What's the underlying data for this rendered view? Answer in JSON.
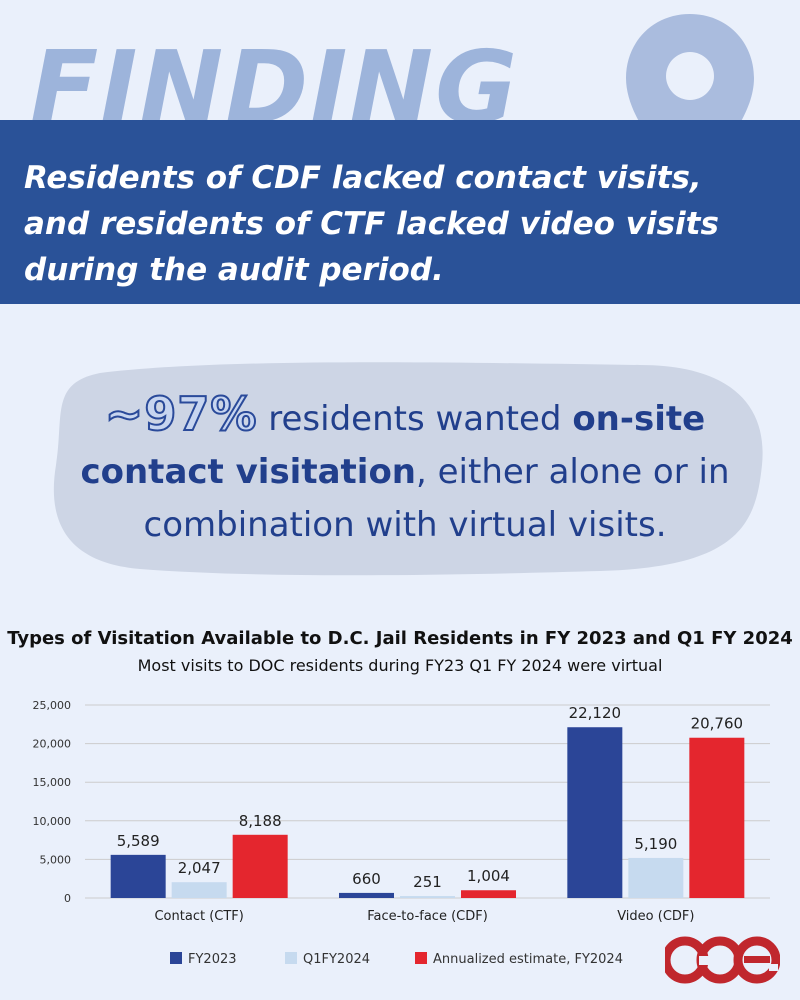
{
  "header": {
    "heading": "FINDING",
    "banner_text": "Residents of CDF lacked contact visits, and residents of CTF lacked video visits during the audit period."
  },
  "callout": {
    "percent": "~97%",
    "text_1": " residents wanted ",
    "emphasis": "on-site contact visitation",
    "text_2": ", either alone or in combination with virtual visits."
  },
  "logo": {
    "text": "cce"
  },
  "colors": {
    "fy2023": "#2b4597",
    "q1fy2024": "#c6daef",
    "annualized": "#e4262e",
    "banner": "#2a5298",
    "background": "#eaf0fb"
  },
  "chart_data": {
    "type": "bar",
    "title": "Types of Visitation Available to D.C. Jail Residents in FY 2023 and Q1 FY 2024",
    "subtitle": "Most visits to DOC residents during FY23 Q1 FY 2024 were virtual",
    "categories": [
      "Contact (CTF)",
      "Face-to-face (CDF)",
      "Video (CDF)"
    ],
    "series": [
      {
        "name": "FY2023",
        "values": [
          5589,
          660,
          22120
        ],
        "labels": [
          "5,589",
          "660",
          "22,120"
        ],
        "color": "#2b4597"
      },
      {
        "name": "Q1FY2024",
        "values": [
          2047,
          251,
          5190
        ],
        "labels": [
          "2,047",
          "251",
          "5,190"
        ],
        "color": "#c6daef"
      },
      {
        "name": "Annualized estimate, FY2024",
        "values": [
          8188,
          1004,
          20760
        ],
        "labels": [
          "8,188",
          "1,004",
          "20,760"
        ],
        "color": "#e4262e"
      }
    ],
    "y_ticks": [
      0,
      5000,
      10000,
      15000,
      20000,
      25000
    ],
    "y_tick_labels": [
      "0",
      "5,000",
      "10,000",
      "15,000",
      "20,000",
      "25,000"
    ],
    "ylim": [
      0,
      25000
    ],
    "grid": true,
    "legend_position": "bottom"
  }
}
